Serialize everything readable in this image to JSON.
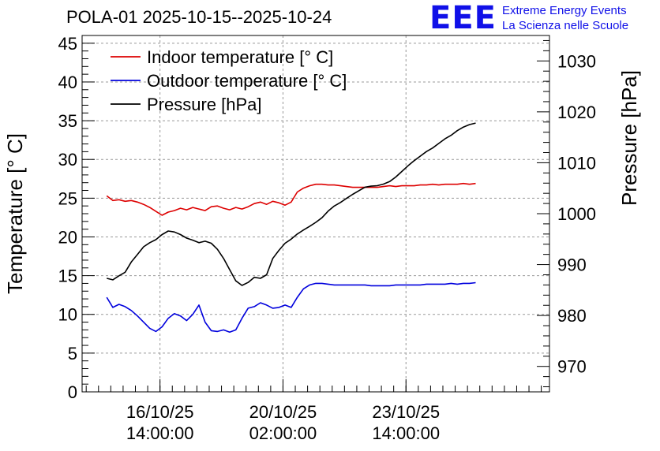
{
  "title": "POLA-01 2025-10-15--2025-10-24",
  "logo": {
    "mark": "EEE",
    "line1": "Extreme Energy Events",
    "line2": "La Scienza nelle Scuole"
  },
  "colors": {
    "indoor": "#dd0000",
    "outdoor": "#0000dd",
    "pressure": "#000000",
    "logo": "#1010e8",
    "grid": "#999999"
  },
  "chart_data": {
    "type": "line",
    "title": "POLA-01 2025-10-15--2025-10-24",
    "ylabel": "Temperature [° C]",
    "y2label": "Pressure [hPa]",
    "xlabel": "",
    "ylim": [
      0,
      46
    ],
    "y2lim": [
      965,
      1035
    ],
    "xlim_hours": [
      0,
      228
    ],
    "yticks": [
      0,
      5,
      10,
      15,
      20,
      25,
      30,
      35,
      40,
      45
    ],
    "y2ticks": [
      970,
      980,
      990,
      1000,
      1010,
      1020,
      1030
    ],
    "xticks": [
      {
        "hour": 38,
        "line1": "16/10/25",
        "line2": "14:00:00"
      },
      {
        "hour": 98,
        "line1": "20/10/25",
        "line2": "02:00:00"
      },
      {
        "hour": 158,
        "line1": "23/10/25",
        "line2": "14:00:00"
      }
    ],
    "legend": [
      "Indoor temperature [° C]",
      "Outdoor temperature [° C]",
      "Pressure [hPa]"
    ],
    "legend_position": "top-left",
    "grid": true,
    "x_hours": [
      12,
      15,
      18,
      21,
      24,
      27,
      30,
      33,
      36,
      39,
      42,
      45,
      48,
      51,
      54,
      57,
      60,
      63,
      66,
      69,
      72,
      75,
      78,
      81,
      84,
      87,
      90,
      93,
      96,
      99,
      102,
      105,
      108,
      111,
      114,
      117,
      120,
      123,
      126,
      129,
      132,
      135,
      138,
      141,
      144,
      147,
      150,
      153,
      156,
      159,
      162,
      165,
      168,
      171,
      174,
      177,
      180,
      183,
      186,
      189,
      192
    ],
    "series": [
      {
        "name": "Indoor temperature [° C]",
        "axis": "left",
        "values": [
          25.3,
          24.7,
          24.8,
          24.6,
          24.7,
          24.5,
          24.2,
          23.8,
          23.3,
          22.8,
          23.2,
          23.4,
          23.7,
          23.5,
          23.8,
          23.6,
          23.4,
          23.9,
          24.0,
          23.7,
          23.5,
          23.8,
          23.6,
          23.9,
          24.3,
          24.5,
          24.2,
          24.6,
          24.4,
          24.1,
          24.5,
          25.8,
          26.3,
          26.6,
          26.8,
          26.8,
          26.7,
          26.7,
          26.6,
          26.5,
          26.4,
          26.4,
          26.4,
          26.4,
          26.4,
          26.5,
          26.6,
          26.5,
          26.6,
          26.6,
          26.6,
          26.7,
          26.7,
          26.8,
          26.7,
          26.8,
          26.8,
          26.8,
          26.9,
          26.8,
          26.9
        ]
      },
      {
        "name": "Outdoor temperature [° C]",
        "axis": "left",
        "values": [
          12.2,
          10.9,
          11.3,
          11.0,
          10.5,
          9.8,
          9.0,
          8.2,
          7.8,
          8.4,
          9.5,
          10.1,
          9.8,
          9.2,
          10.0,
          11.2,
          9.0,
          7.9,
          7.8,
          8.0,
          7.7,
          8.0,
          9.5,
          10.8,
          11.0,
          11.5,
          11.2,
          10.8,
          10.9,
          11.2,
          10.9,
          12.2,
          13.3,
          13.8,
          14.0,
          14.0,
          13.9,
          13.8,
          13.8,
          13.8,
          13.8,
          13.8,
          13.8,
          13.7,
          13.7,
          13.7,
          13.7,
          13.8,
          13.8,
          13.8,
          13.8,
          13.8,
          13.9,
          13.9,
          13.9,
          13.9,
          14.0,
          13.9,
          14.0,
          14.0,
          14.1
        ]
      },
      {
        "name": "Pressure [hPa]",
        "axis": "right",
        "values": [
          987.3,
          987.0,
          987.8,
          988.5,
          990.5,
          992.0,
          993.5,
          994.3,
          994.9,
          995.9,
          996.6,
          996.4,
          995.9,
          995.2,
          994.8,
          994.3,
          994.6,
          994.2,
          993.0,
          991.2,
          989.0,
          986.8,
          985.9,
          986.5,
          987.5,
          987.3,
          988.0,
          991.2,
          992.8,
          994.2,
          995.0,
          996.0,
          996.8,
          997.5,
          998.3,
          999.2,
          1000.5,
          1001.5,
          1002.2,
          1003.0,
          1003.8,
          1004.5,
          1005.2,
          1005.4,
          1005.5,
          1005.8,
          1006.3,
          1007.2,
          1008.3,
          1009.4,
          1010.4,
          1011.3,
          1012.2,
          1012.9,
          1013.8,
          1014.7,
          1015.4,
          1016.3,
          1017.0,
          1017.5,
          1017.8
        ]
      }
    ]
  }
}
